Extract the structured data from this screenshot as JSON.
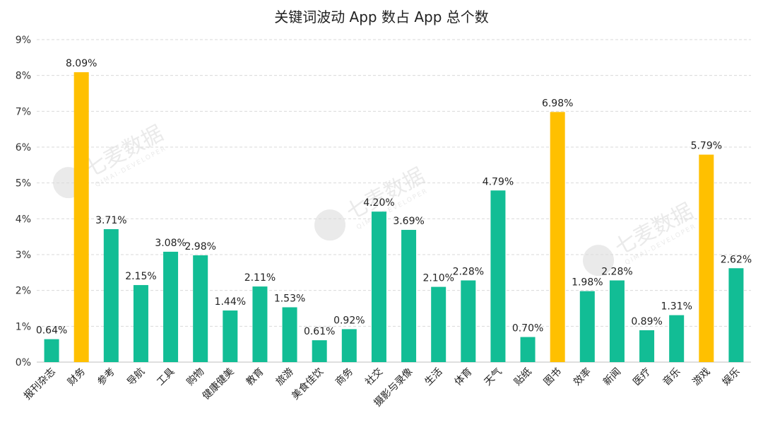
{
  "chart_data": {
    "type": "bar",
    "title": "关键词波动 App 数占 App 总个数",
    "xlabel": "",
    "ylabel": "",
    "ylim": [
      0,
      9
    ],
    "yticks": [
      "0%",
      "1%",
      "2%",
      "3%",
      "4%",
      "5%",
      "6%",
      "7%",
      "8%",
      "9%"
    ],
    "grid": true,
    "legend": "none",
    "colors": {
      "normal": "#12bd95",
      "highlight": "#ffc000"
    },
    "categories": [
      "报刊杂志",
      "财务",
      "参考",
      "导航",
      "工具",
      "购物",
      "健康健美",
      "教育",
      "旅游",
      "美食佳饮",
      "商务",
      "社交",
      "摄影与录像",
      "生活",
      "体育",
      "天气",
      "贴纸",
      "图书",
      "效率",
      "新闻",
      "医疗",
      "音乐",
      "游戏",
      "娱乐"
    ],
    "values": [
      0.64,
      8.09,
      3.71,
      2.15,
      3.08,
      2.98,
      1.44,
      2.11,
      1.53,
      0.61,
      0.92,
      4.2,
      3.69,
      2.1,
      2.28,
      4.79,
      0.7,
      6.98,
      1.98,
      2.28,
      0.89,
      1.31,
      5.79,
      2.62
    ],
    "labels": [
      "0.64%",
      "8.09%",
      "3.71%",
      "2.15%",
      "3.08%",
      "2.98%",
      "1.44%",
      "2.11%",
      "1.53%",
      "0.61%",
      "0.92%",
      "4.20%",
      "3.69%",
      "2.10%",
      "2.28%",
      "4.79%",
      "0.70%",
      "6.98%",
      "1.98%",
      "2.28%",
      "0.89%",
      "1.31%",
      "5.79%",
      "2.62%"
    ],
    "highlighted": [
      "财务",
      "图书",
      "游戏"
    ]
  },
  "watermark": {
    "brand": "七麦数据",
    "sub": "QIMAI-DEVELOPER"
  }
}
